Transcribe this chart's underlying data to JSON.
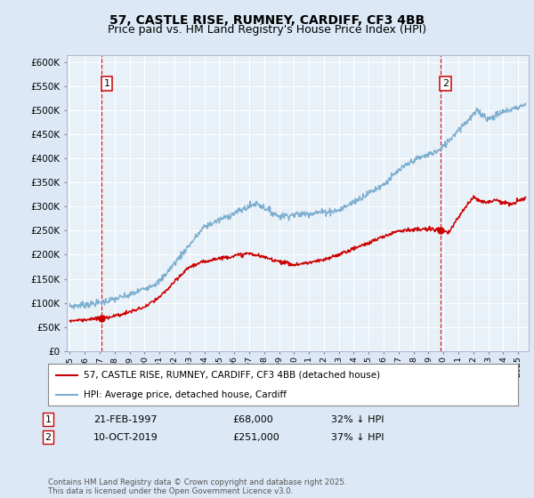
{
  "title": "57, CASTLE RISE, RUMNEY, CARDIFF, CF3 4BB",
  "subtitle": "Price paid vs. HM Land Registry's House Price Index (HPI)",
  "ylabel_ticks": [
    "£0",
    "£50K",
    "£100K",
    "£150K",
    "£200K",
    "£250K",
    "£300K",
    "£350K",
    "£400K",
    "£450K",
    "£500K",
    "£550K",
    "£600K"
  ],
  "ytick_values": [
    0,
    50000,
    100000,
    150000,
    200000,
    250000,
    300000,
    350000,
    400000,
    450000,
    500000,
    550000,
    600000
  ],
  "ylim": [
    0,
    615000
  ],
  "xlim_start": 1994.8,
  "xlim_end": 2025.7,
  "marker1_x": 1997.14,
  "marker1_y": 68000,
  "marker1_label": "1",
  "marker1_date": "21-FEB-1997",
  "marker1_price": "£68,000",
  "marker1_hpi": "32% ↓ HPI",
  "marker2_x": 2019.78,
  "marker2_y": 251000,
  "marker2_label": "2",
  "marker2_date": "10-OCT-2019",
  "marker2_price": "£251,000",
  "marker2_hpi": "37% ↓ HPI",
  "vline1_x": 1997.14,
  "vline2_x": 2019.78,
  "legend_line1": "57, CASTLE RISE, RUMNEY, CARDIFF, CF3 4BB (detached house)",
  "legend_line2": "HPI: Average price, detached house, Cardiff",
  "footer": "Contains HM Land Registry data © Crown copyright and database right 2025.\nThis data is licensed under the Open Government Licence v3.0.",
  "red_color": "#cc0000",
  "blue_color": "#7aadce",
  "bg_color": "#dce8f5",
  "plot_bg": "#e8f0f8",
  "title_fontsize": 10,
  "subtitle_fontsize": 9
}
